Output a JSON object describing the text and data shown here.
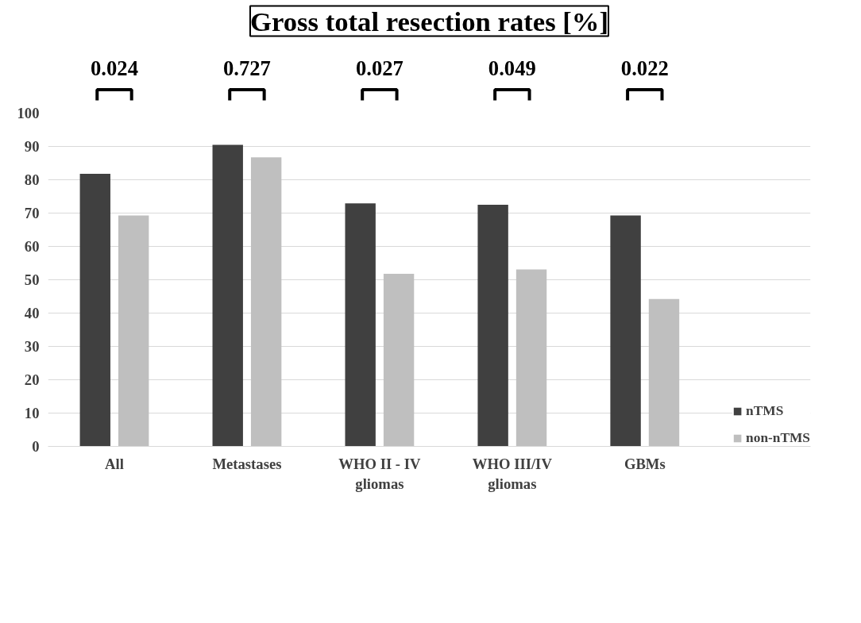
{
  "chart_data": {
    "type": "bar",
    "title": "Gross total resection rates [%]",
    "categories": [
      "All",
      "Metastases",
      "WHO II - IV\ngliomas",
      "WHO III/IV\ngliomas",
      "GBMs"
    ],
    "series": [
      {
        "name": "nTMS",
        "color": "#404040",
        "values": [
          81.8,
          90.5,
          72.9,
          72.5,
          69.3
        ]
      },
      {
        "name": "non-nTMS",
        "color": "#bfbfbf",
        "values": [
          69.3,
          86.7,
          51.8,
          53.1,
          44.2
        ]
      }
    ],
    "annotations": [
      "0.024",
      "0.727",
      "0.027",
      "0.049",
      "0.022"
    ],
    "ylim": [
      0,
      100
    ],
    "yticks": [
      0,
      10,
      20,
      30,
      40,
      50,
      60,
      70,
      80,
      90,
      100
    ],
    "grid": "y",
    "legend": "bottom right"
  }
}
